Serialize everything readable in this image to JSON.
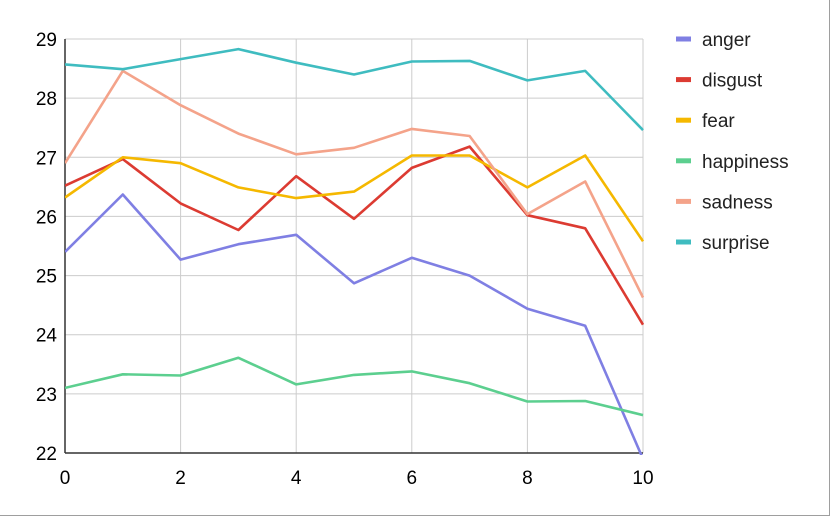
{
  "chart_data": {
    "type": "line",
    "title": "",
    "xlabel": "",
    "ylabel": "",
    "x": [
      0,
      1,
      2,
      3,
      4,
      5,
      6,
      7,
      8,
      9,
      10
    ],
    "xlim": [
      0,
      10
    ],
    "ylim": [
      22,
      29
    ],
    "x_ticks": [
      0,
      2,
      4,
      6,
      8,
      10
    ],
    "y_ticks": [
      22,
      23,
      24,
      25,
      26,
      27,
      28,
      29
    ],
    "grid": true,
    "legend_position": "right",
    "series": [
      {
        "name": "anger",
        "color": "#7f7fe3",
        "values": [
          25.4,
          26.37,
          25.27,
          25.53,
          25.69,
          24.87,
          25.3,
          25.0,
          24.44,
          24.15,
          21.9
        ]
      },
      {
        "name": "disgust",
        "color": "#dc3b32",
        "values": [
          26.52,
          26.97,
          26.22,
          25.77,
          26.68,
          25.96,
          26.82,
          27.18,
          26.02,
          25.8,
          24.17
        ]
      },
      {
        "name": "fear",
        "color": "#f5b800",
        "values": [
          26.32,
          27.0,
          26.9,
          26.49,
          26.31,
          26.42,
          27.03,
          27.03,
          26.49,
          27.03,
          25.58
        ]
      },
      {
        "name": "happiness",
        "color": "#5ccf8f",
        "values": [
          23.1,
          23.33,
          23.31,
          23.61,
          23.16,
          23.32,
          23.38,
          23.18,
          22.87,
          22.88,
          22.64
        ]
      },
      {
        "name": "sadness",
        "color": "#f4a38a",
        "values": [
          26.9,
          28.46,
          27.88,
          27.4,
          27.05,
          27.16,
          27.48,
          27.36,
          26.04,
          26.59,
          24.63
        ]
      },
      {
        "name": "surprise",
        "color": "#3fbcc0",
        "values": [
          28.57,
          28.49,
          28.66,
          28.83,
          28.6,
          28.4,
          28.62,
          28.63,
          28.3,
          28.46,
          27.46
        ]
      }
    ]
  }
}
